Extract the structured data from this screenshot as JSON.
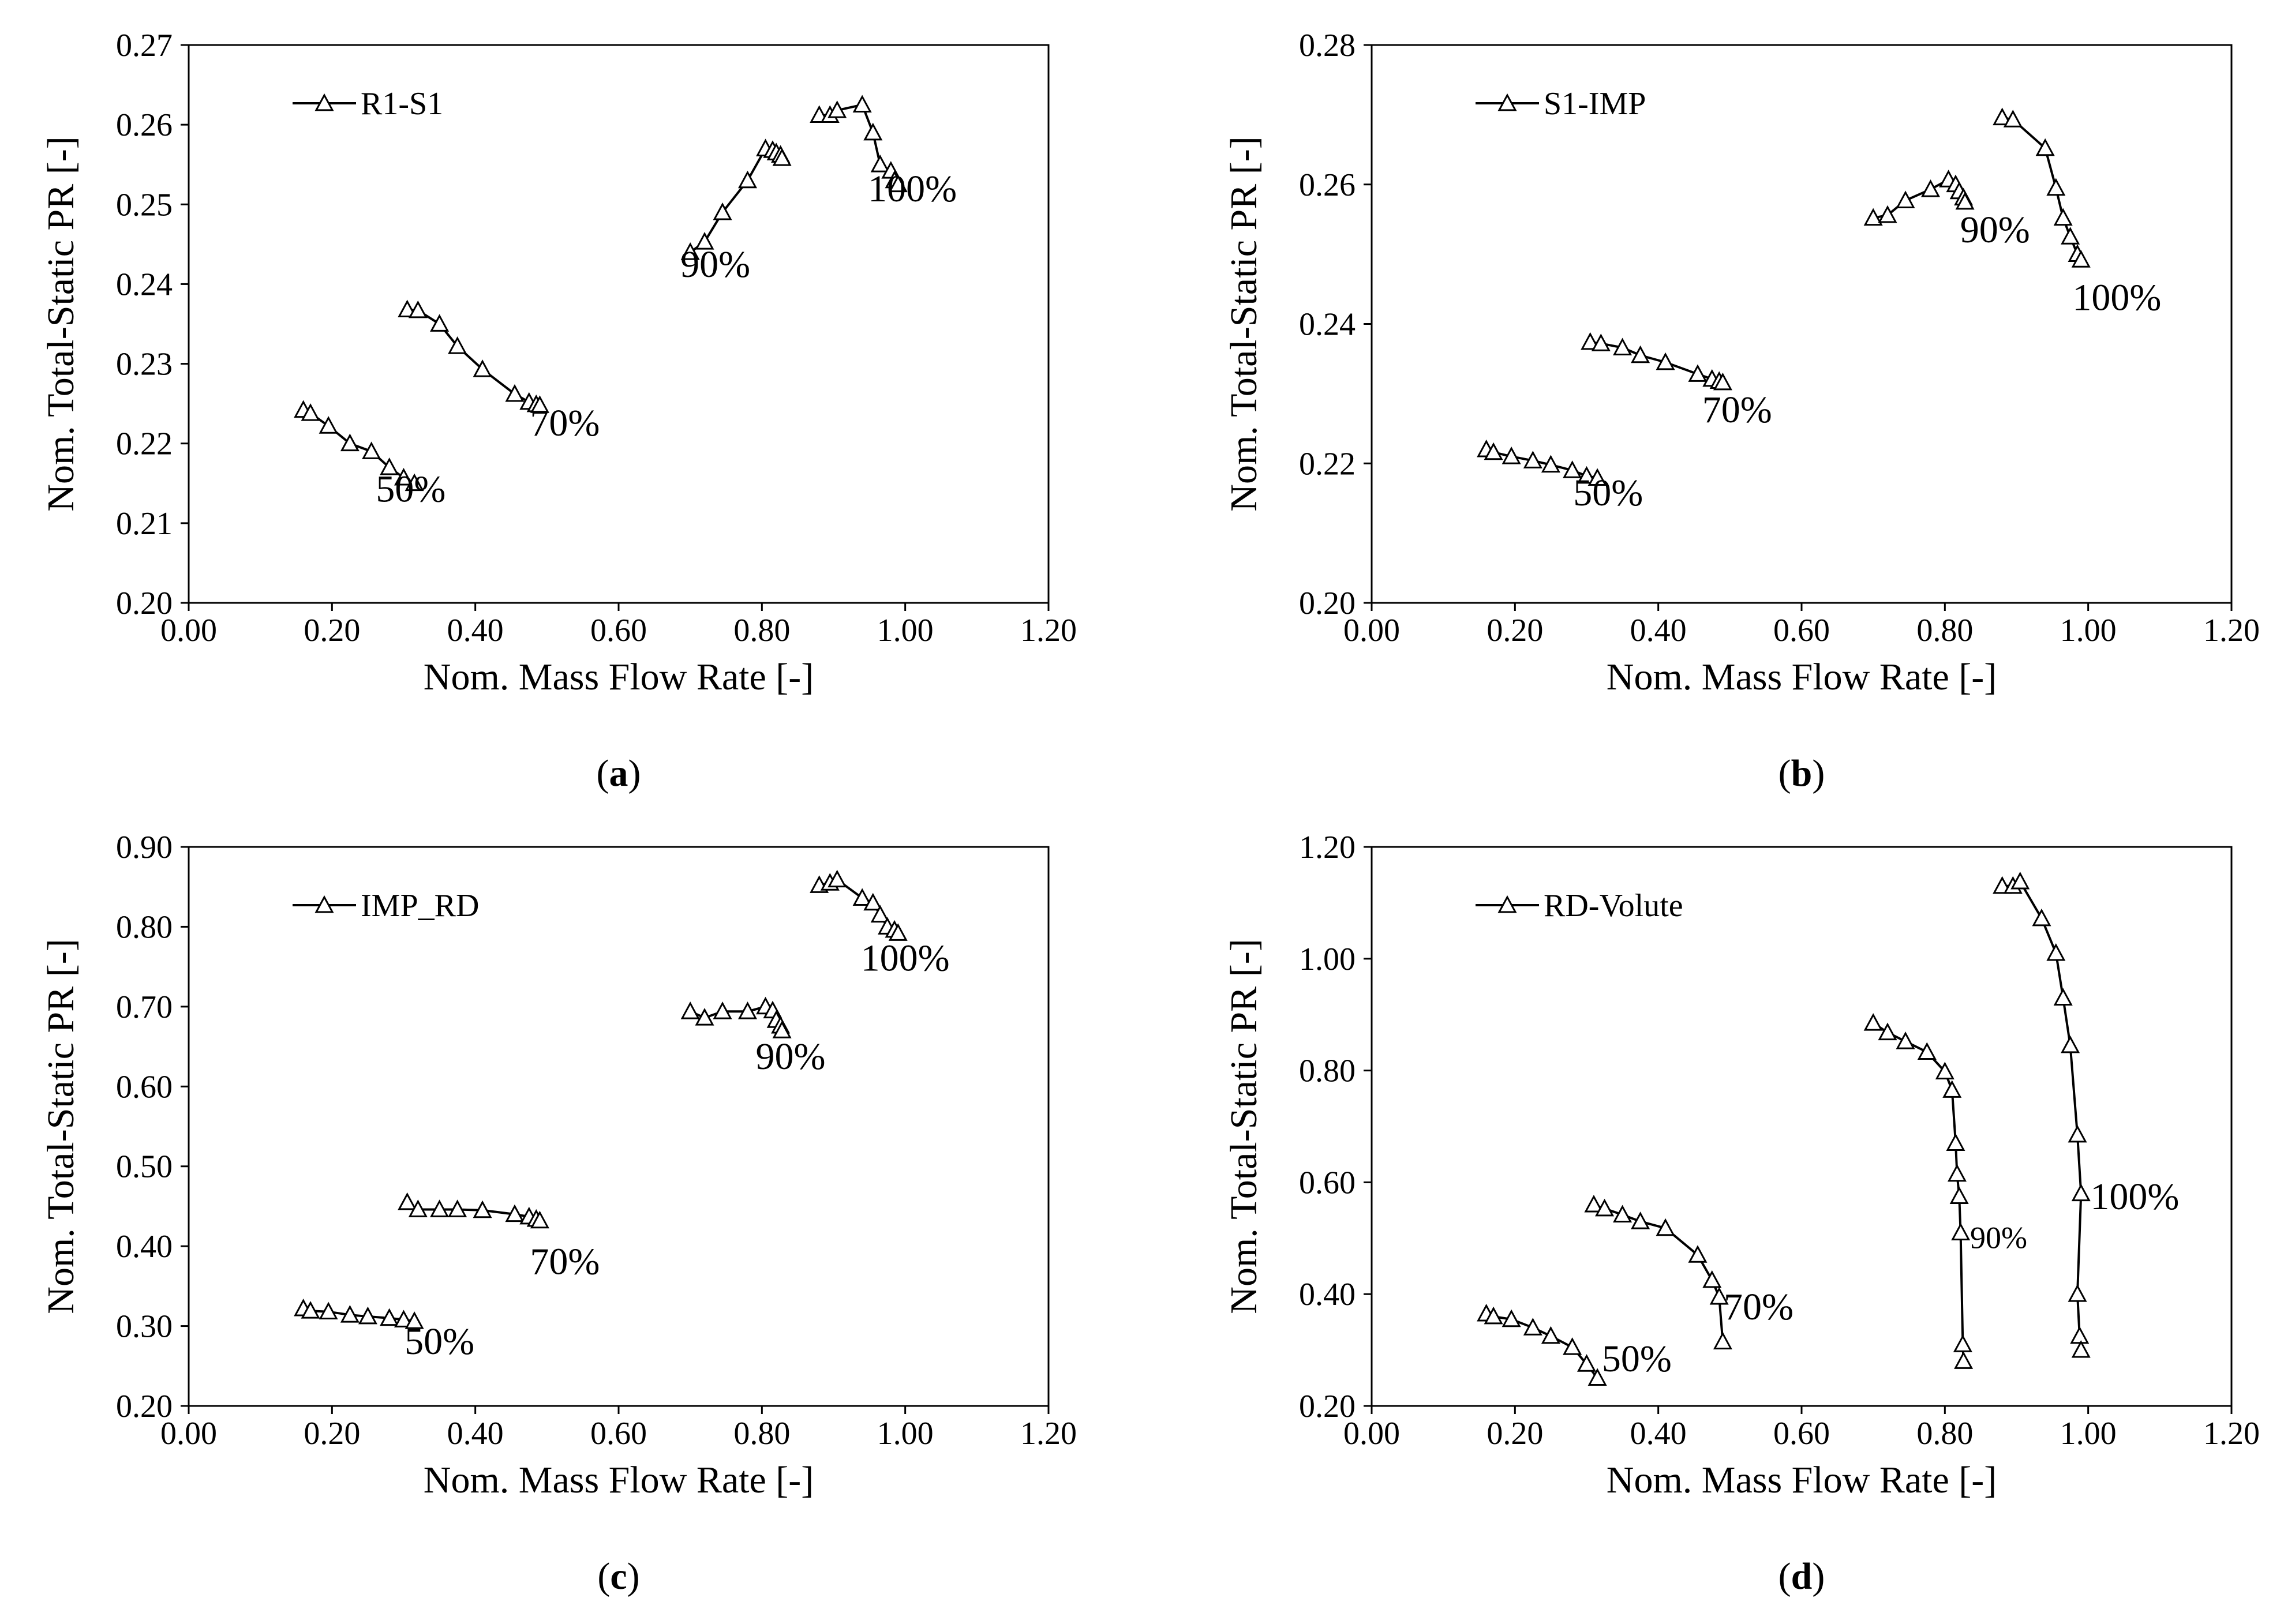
{
  "figure": {
    "chart_data": [
      {
        "id": "a",
        "type": "line",
        "caption_open": "(",
        "caption_letter": "a",
        "caption_close": ")",
        "xlabel": "Nom. Mass Flow Rate [-]",
        "ylabel": "Nom. Total-Static PR [-]",
        "xlim": [
          0,
          1.2
        ],
        "ylim": [
          0.2,
          0.27
        ],
        "xticks": [
          "0.00",
          "0.20",
          "0.40",
          "0.60",
          "0.80",
          "1.00",
          "1.20"
        ],
        "yticks": [
          "0.20",
          "0.21",
          "0.22",
          "0.23",
          "0.24",
          "0.25",
          "0.26",
          "0.27"
        ],
        "legend": "R1-S1",
        "legend_position": "top-left",
        "marker": "triangle",
        "series": [
          {
            "name": "50%",
            "x": [
              0.16,
              0.17,
              0.195,
              0.225,
              0.255,
              0.28,
              0.3,
              0.315
            ],
            "y": [
              0.2242,
              0.2238,
              0.2222,
              0.22,
              0.219,
              0.217,
              0.2157,
              0.215
            ]
          },
          {
            "name": "70%",
            "x": [
              0.305,
              0.32,
              0.35,
              0.375,
              0.41,
              0.455,
              0.475,
              0.485,
              0.49
            ],
            "y": [
              0.2368,
              0.2367,
              0.235,
              0.2322,
              0.2293,
              0.2262,
              0.2252,
              0.2249,
              0.2248
            ]
          },
          {
            "name": "90%",
            "x": [
              0.7,
              0.72,
              0.745,
              0.78,
              0.805,
              0.815,
              0.82,
              0.826,
              0.828
            ],
            "y": [
              0.244,
              0.2453,
              0.249,
              0.253,
              0.257,
              0.2568,
              0.2565,
              0.2562,
              0.2558
            ]
          },
          {
            "name": "100%",
            "x": [
              0.88,
              0.895,
              0.905,
              0.94,
              0.955,
              0.965,
              0.98,
              0.985,
              0.99
            ],
            "y": [
              0.2612,
              0.2612,
              0.2618,
              0.2625,
              0.259,
              0.255,
              0.2542,
              0.253,
              0.2525
            ]
          }
        ],
        "annotations": [
          {
            "text": "50%",
            "x": 0.31,
            "y": 0.2127
          },
          {
            "text": "70%",
            "x": 0.525,
            "y": 0.221
          },
          {
            "text": "90%",
            "x": 0.735,
            "y": 0.2409
          },
          {
            "text": "100%",
            "x": 1.01,
            "y": 0.2504
          }
        ]
      },
      {
        "id": "b",
        "type": "line",
        "caption_open": "(",
        "caption_letter": "b",
        "caption_close": ")",
        "xlabel": "Nom. Mass Flow Rate [-]",
        "ylabel": "Nom. Total-Static PR [-]",
        "xlim": [
          0,
          1.2
        ],
        "ylim": [
          0.2,
          0.28
        ],
        "xticks": [
          "0.00",
          "0.20",
          "0.40",
          "0.60",
          "0.80",
          "1.00",
          "1.20"
        ],
        "yticks": [
          "0.20",
          "0.22",
          "0.24",
          "0.26",
          "0.28"
        ],
        "legend": "S1-IMP",
        "legend_position": "top-left",
        "marker": "triangle",
        "series": [
          {
            "name": "50%",
            "x": [
              0.16,
              0.17,
              0.195,
              0.225,
              0.25,
              0.28,
              0.3,
              0.315
            ],
            "y": [
              0.222,
              0.2216,
              0.221,
              0.2204,
              0.2198,
              0.219,
              0.2182,
              0.2179
            ]
          },
          {
            "name": "70%",
            "x": [
              0.305,
              0.32,
              0.35,
              0.375,
              0.41,
              0.455,
              0.475,
              0.485,
              0.49
            ],
            "y": [
              0.2374,
              0.2372,
              0.2366,
              0.2355,
              0.2345,
              0.2328,
              0.2321,
              0.2318,
              0.2316
            ]
          },
          {
            "name": "90%",
            "x": [
              0.7,
              0.72,
              0.745,
              0.78,
              0.805,
              0.815,
              0.82,
              0.826,
              0.828
            ],
            "y": [
              0.2552,
              0.2556,
              0.2577,
              0.2593,
              0.2607,
              0.26,
              0.259,
              0.2581,
              0.2575
            ]
          },
          {
            "name": "100%",
            "x": [
              0.88,
              0.895,
              0.94,
              0.955,
              0.965,
              0.975,
              0.985,
              0.99
            ],
            "y": [
              0.2696,
              0.2693,
              0.2652,
              0.2595,
              0.2552,
              0.2525,
              0.25,
              0.2492
            ]
          }
        ],
        "annotations": [
          {
            "text": "50%",
            "x": 0.33,
            "y": 0.214
          },
          {
            "text": "70%",
            "x": 0.51,
            "y": 0.2259
          },
          {
            "text": "90%",
            "x": 0.87,
            "y": 0.2517
          },
          {
            "text": "100%",
            "x": 1.04,
            "y": 0.242
          }
        ]
      },
      {
        "id": "c",
        "type": "line",
        "caption_open": "(",
        "caption_letter": "c",
        "caption_close": ")",
        "xlabel": "Nom. Mass Flow Rate [-]",
        "ylabel": "Nom. Total-Static PR [-]",
        "xlim": [
          0,
          1.2
        ],
        "ylim": [
          0.2,
          0.9
        ],
        "xticks": [
          "0.00",
          "0.20",
          "0.40",
          "0.60",
          "0.80",
          "1.00",
          "1.20"
        ],
        "yticks": [
          "0.20",
          "0.30",
          "0.40",
          "0.50",
          "0.60",
          "0.70",
          "0.80",
          "0.90"
        ],
        "legend": "IMP_RD",
        "legend_position": "top-left",
        "marker": "triangle",
        "series": [
          {
            "name": "50%",
            "x": [
              0.16,
              0.17,
              0.195,
              0.225,
              0.25,
              0.28,
              0.3,
              0.315
            ],
            "y": [
              0.322,
              0.319,
              0.318,
              0.314,
              0.312,
              0.31,
              0.308,
              0.306
            ]
          },
          {
            "name": "70%",
            "x": [
              0.305,
              0.32,
              0.35,
              0.375,
              0.41,
              0.455,
              0.475,
              0.485,
              0.49
            ],
            "y": [
              0.455,
              0.446,
              0.446,
              0.446,
              0.445,
              0.44,
              0.437,
              0.434,
              0.432
            ]
          },
          {
            "name": "90%",
            "x": [
              0.7,
              0.72,
              0.745,
              0.78,
              0.805,
              0.815,
              0.82,
              0.826,
              0.828
            ],
            "y": [
              0.694,
              0.686,
              0.694,
              0.694,
              0.7,
              0.695,
              0.683,
              0.676,
              0.67
            ]
          },
          {
            "name": "100%",
            "x": [
              0.88,
              0.895,
              0.905,
              0.94,
              0.955,
              0.965,
              0.975,
              0.985,
              0.99
            ],
            "y": [
              0.852,
              0.855,
              0.859,
              0.836,
              0.83,
              0.815,
              0.8,
              0.796,
              0.792
            ]
          }
        ],
        "annotations": [
          {
            "text": "50%",
            "x": 0.35,
            "y": 0.265
          },
          {
            "text": "70%",
            "x": 0.525,
            "y": 0.365
          },
          {
            "text": "90%",
            "x": 0.84,
            "y": 0.622
          },
          {
            "text": "100%",
            "x": 1.0,
            "y": 0.745
          }
        ]
      },
      {
        "id": "d",
        "type": "line",
        "caption_open": "(",
        "caption_letter": "d",
        "caption_close": ")",
        "xlabel": "Nom. Mass Flow Rate [-]",
        "ylabel": "Nom. Total-Static PR [-]",
        "xlim": [
          0,
          1.2
        ],
        "ylim": [
          0.2,
          1.2
        ],
        "xticks": [
          "0.00",
          "0.20",
          "0.40",
          "0.60",
          "0.80",
          "1.00",
          "1.20"
        ],
        "yticks": [
          "0.20",
          "0.40",
          "0.60",
          "0.80",
          "1.00",
          "1.20"
        ],
        "legend": "RD-Volute",
        "legend_position": "top-left",
        "marker": "triangle",
        "series": [
          {
            "name": "50%",
            "x": [
              0.16,
              0.17,
              0.195,
              0.225,
              0.25,
              0.28,
              0.3,
              0.315
            ],
            "y": [
              0.365,
              0.36,
              0.355,
              0.34,
              0.325,
              0.305,
              0.275,
              0.25
            ]
          },
          {
            "name": "70%",
            "x": [
              0.31,
              0.325,
              0.35,
              0.375,
              0.41,
              0.455,
              0.475,
              0.485,
              0.49
            ],
            "y": [
              0.56,
              0.553,
              0.542,
              0.53,
              0.518,
              0.47,
              0.425,
              0.395,
              0.315
            ]
          },
          {
            "name": "90%",
            "x": [
              0.7,
              0.72,
              0.745,
              0.775,
              0.8,
              0.81,
              0.815,
              0.817,
              0.82,
              0.822,
              0.825,
              0.826
            ],
            "y": [
              0.885,
              0.868,
              0.852,
              0.833,
              0.798,
              0.765,
              0.67,
              0.615,
              0.575,
              0.51,
              0.31,
              0.28
            ]
          },
          {
            "name": "100%",
            "x": [
              0.88,
              0.895,
              0.905,
              0.935,
              0.955,
              0.965,
              0.975,
              0.985,
              0.99,
              0.985,
              0.988,
              0.99
            ],
            "y": [
              1.13,
              1.13,
              1.138,
              1.072,
              1.01,
              0.93,
              0.845,
              0.685,
              0.58,
              0.4,
              0.325,
              0.3
            ]
          }
        ],
        "annotations": [
          {
            "text": "50%",
            "x": 0.37,
            "y": 0.262
          },
          {
            "text": "70%",
            "x": 0.54,
            "y": 0.355
          },
          {
            "text": "90%",
            "x": 0.875,
            "y": 0.482
          },
          {
            "text": "100%",
            "x": 1.065,
            "y": 0.552
          }
        ]
      }
    ]
  }
}
